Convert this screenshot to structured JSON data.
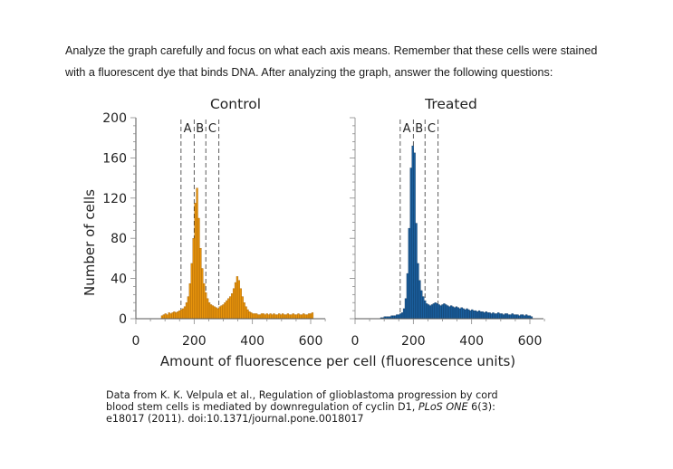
{
  "intro": {
    "line1": "Analyze the graph carefully and focus on what each axis means. Remember that these cells were stained",
    "line2": "with a fluorescent dye that binds DNA. After analyzing the graph, answer the following questions:"
  },
  "source": {
    "line1": "Data from K. K. Velpula et al., Regulation of glioblastoma progression by cord",
    "line2": "blood stem cells is mediated by downregulation of cyclin D1,",
    "journal": "PLoS ONE",
    "line2_end": "6(3):",
    "line3": "e18017 (2011). doi:10.1371/journal.pone.0018017"
  },
  "colors": {
    "control": "#e8940c",
    "control_edge": "#9a5a00",
    "treated": "#1a5f9e",
    "treated_edge": "#0b2f55"
  },
  "chart_data": [
    {
      "type": "bar",
      "title": "Control",
      "xlabel": "Amount of fluorescence per cell (fluorescence units)",
      "ylabel": "Number of cells",
      "xlim": [
        0,
        700
      ],
      "ylim": [
        0,
        200
      ],
      "xticks": [
        "0",
        "200",
        "400",
        "600"
      ],
      "yticks": [
        "0",
        "40",
        "80",
        "120",
        "160",
        "200"
      ],
      "regions": [
        {
          "label": "A",
          "from": 155,
          "to": 200
        },
        {
          "label": "B",
          "from": 200,
          "to": 240
        },
        {
          "label": "C",
          "from": 240,
          "to": 285
        }
      ],
      "bin_width": 6,
      "x": [
        90,
        96,
        102,
        108,
        114,
        120,
        126,
        132,
        138,
        144,
        150,
        156,
        162,
        168,
        174,
        180,
        186,
        192,
        198,
        204,
        210,
        216,
        222,
        228,
        234,
        240,
        246,
        252,
        258,
        264,
        270,
        276,
        282,
        288,
        294,
        300,
        306,
        312,
        318,
        324,
        330,
        336,
        342,
        348,
        354,
        360,
        366,
        372,
        378,
        384,
        390,
        396,
        402,
        408,
        414,
        420,
        426,
        432,
        438,
        444,
        450,
        456,
        462,
        468,
        474,
        480,
        486,
        492,
        498,
        504,
        510,
        516,
        522,
        528,
        534,
        540,
        546,
        552,
        558,
        564,
        570,
        576,
        582,
        588,
        594,
        600,
        606
      ],
      "values": [
        3,
        4,
        5,
        4,
        6,
        5,
        6,
        7,
        6,
        7,
        8,
        9,
        10,
        12,
        16,
        22,
        35,
        55,
        80,
        115,
        130,
        100,
        70,
        50,
        35,
        26,
        20,
        16,
        14,
        13,
        12,
        11,
        10,
        12,
        13,
        14,
        16,
        18,
        20,
        22,
        25,
        30,
        36,
        42,
        38,
        30,
        22,
        16,
        12,
        9,
        7,
        6,
        5,
        5,
        5,
        4,
        4,
        5,
        5,
        4,
        5,
        4,
        5,
        4,
        5,
        4,
        4,
        5,
        4,
        5,
        4,
        4,
        5,
        4,
        4,
        5,
        4,
        4,
        5,
        4,
        4,
        5,
        4,
        4,
        5,
        5,
        6
      ]
    },
    {
      "type": "bar",
      "title": "Treated",
      "xlim": [
        0,
        700
      ],
      "ylim": [
        0,
        200
      ],
      "xticks": [
        "0",
        "200",
        "400",
        "600"
      ],
      "regions": [
        {
          "label": "A",
          "from": 155,
          "to": 200
        },
        {
          "label": "B",
          "from": 200,
          "to": 240
        },
        {
          "label": "C",
          "from": 240,
          "to": 285
        }
      ],
      "bin_width": 6,
      "x": [
        90,
        96,
        102,
        108,
        114,
        120,
        126,
        132,
        138,
        144,
        150,
        156,
        162,
        168,
        174,
        180,
        186,
        192,
        198,
        204,
        210,
        216,
        222,
        228,
        234,
        240,
        246,
        252,
        258,
        264,
        270,
        276,
        282,
        288,
        294,
        300,
        306,
        312,
        318,
        324,
        330,
        336,
        342,
        348,
        354,
        360,
        366,
        372,
        378,
        384,
        390,
        396,
        402,
        408,
        414,
        420,
        426,
        432,
        438,
        444,
        450,
        456,
        462,
        468,
        474,
        480,
        486,
        492,
        498,
        504,
        510,
        516,
        522,
        528,
        534,
        540,
        546,
        552,
        558,
        564,
        570,
        576,
        582,
        588,
        594,
        600,
        606
      ],
      "values": [
        1,
        1,
        2,
        2,
        2,
        2,
        3,
        3,
        3,
        4,
        4,
        5,
        6,
        10,
        20,
        45,
        90,
        150,
        172,
        165,
        95,
        55,
        38,
        28,
        22,
        18,
        15,
        14,
        13,
        14,
        15,
        16,
        15,
        14,
        13,
        14,
        15,
        14,
        13,
        12,
        13,
        12,
        11,
        12,
        11,
        10,
        11,
        10,
        9,
        10,
        9,
        8,
        9,
        8,
        8,
        7,
        8,
        7,
        7,
        6,
        7,
        6,
        6,
        5,
        6,
        5,
        5,
        6,
        5,
        5,
        4,
        5,
        5,
        4,
        4,
        5,
        4,
        4,
        4,
        3,
        4,
        4,
        3,
        4,
        3,
        3,
        2
      ]
    }
  ]
}
